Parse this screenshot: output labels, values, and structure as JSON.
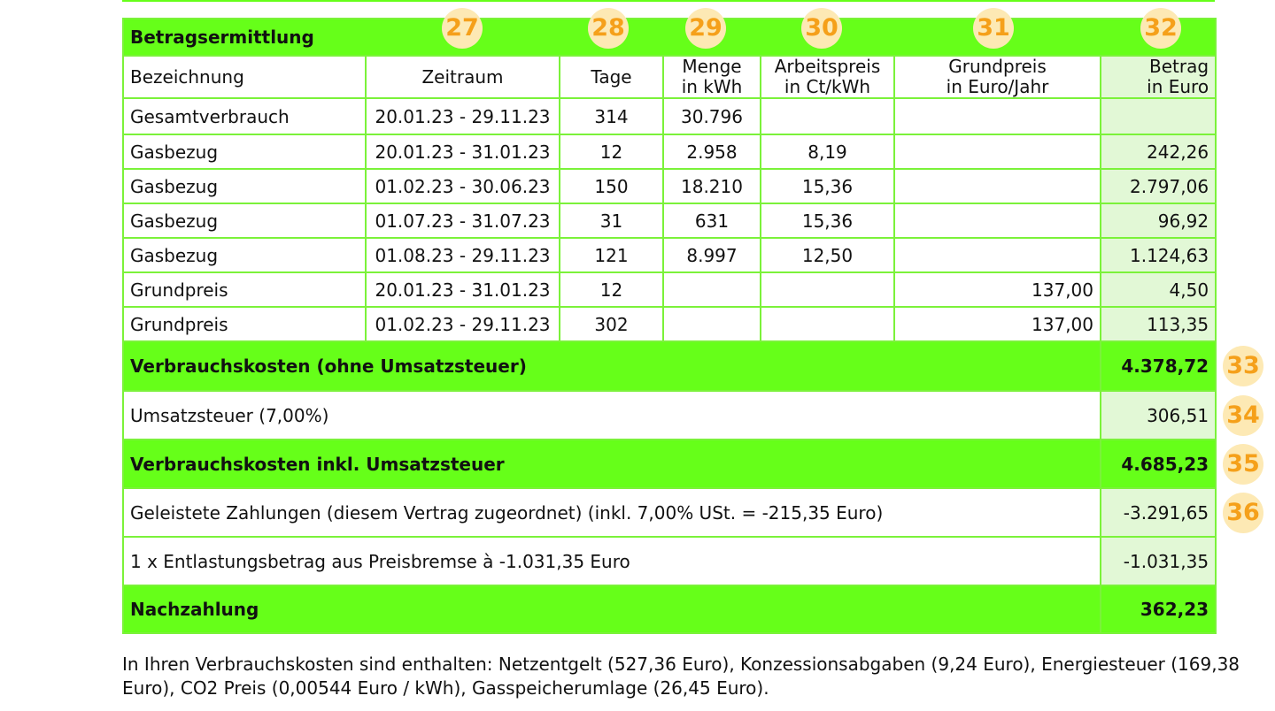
{
  "table": {
    "title": "Betragsermittlung",
    "headers": {
      "bezeichnung": "Bezeichnung",
      "zeitraum": "Zeitraum",
      "tage": "Tage",
      "menge_1": "Menge",
      "menge_2": "in kWh",
      "arbeitspreis_1": "Arbeitspreis",
      "arbeitspreis_2": "in Ct/kWh",
      "grundpreis_1": "Grundpreis",
      "grundpreis_2": "in Euro/Jahr",
      "betrag_1": "Betrag",
      "betrag_2": "in Euro"
    },
    "column_badges": [
      "27",
      "28",
      "29",
      "30",
      "31",
      "32"
    ],
    "rows": [
      {
        "bezeichnung": "Gesamtverbrauch",
        "zeitraum": "20.01.23 - 29.11.23",
        "tage": "314",
        "menge": "30.796",
        "arbeitspreis": "",
        "grundpreis": "",
        "betrag": ""
      },
      {
        "bezeichnung": "Gasbezug",
        "zeitraum": "20.01.23 - 31.01.23",
        "tage": "12",
        "menge": "2.958",
        "arbeitspreis": "8,19",
        "grundpreis": "",
        "betrag": "242,26"
      },
      {
        "bezeichnung": "Gasbezug",
        "zeitraum": "01.02.23 - 30.06.23",
        "tage": "150",
        "menge": "18.210",
        "arbeitspreis": "15,36",
        "grundpreis": "",
        "betrag": "2.797,06"
      },
      {
        "bezeichnung": "Gasbezug",
        "zeitraum": "01.07.23 - 31.07.23",
        "tage": "31",
        "menge": "631",
        "arbeitspreis": "15,36",
        "grundpreis": "",
        "betrag": "96,92"
      },
      {
        "bezeichnung": "Gasbezug",
        "zeitraum": "01.08.23 - 29.11.23",
        "tage": "121",
        "menge": "8.997",
        "arbeitspreis": "12,50",
        "grundpreis": "",
        "betrag": "1.124,63"
      },
      {
        "bezeichnung": "Grundpreis",
        "zeitraum": "20.01.23 - 31.01.23",
        "tage": "12",
        "menge": "",
        "arbeitspreis": "",
        "grundpreis": "137,00",
        "betrag": "4,50"
      },
      {
        "bezeichnung": "Grundpreis",
        "zeitraum": "01.02.23 - 29.11.23",
        "tage": "302",
        "menge": "",
        "arbeitspreis": "",
        "grundpreis": "137,00",
        "betrag": "113,35"
      }
    ],
    "summary": [
      {
        "label": "Verbrauchskosten (ohne Umsatzsteuer)",
        "value": "4.378,72",
        "badge": "33",
        "style": "green"
      },
      {
        "label": "Umsatzsteuer (7,00%)",
        "value": "306,51",
        "badge": "34",
        "style": "plain"
      },
      {
        "label": "Verbrauchskosten inkl. Umsatzsteuer",
        "value": "4.685,23",
        "badge": "35",
        "style": "green"
      },
      {
        "label": "Geleistete Zahlungen (diesem Vertrag zugeordnet) (inkl. 7,00% USt. = -215,35 Euro)",
        "value": "-3.291,65",
        "badge": "36",
        "style": "plain"
      },
      {
        "label": "1 x Entlastungsbetrag aus Preisbremse  à -1.031,35 Euro",
        "value": "-1.031,35",
        "badge": "",
        "style": "plain"
      },
      {
        "label": "Nachzahlung",
        "value": "362,23",
        "badge": "",
        "style": "green"
      }
    ]
  },
  "footnote": "In Ihren Verbrauchskosten sind enthalten: Netzentgelt (527,36 Euro), Konzessionsabgaben (9,24 Euro), Energiesteuer (169,38 Euro), CO2 Preis (0,00544 Euro / kWh), Gasspeicherumlage (26,45 Euro).",
  "colors": {
    "accent_green": "#66ff19",
    "light_green": "#e2f8d6",
    "badge_bg": "#fde9b4",
    "badge_text": "#f5a01a"
  }
}
